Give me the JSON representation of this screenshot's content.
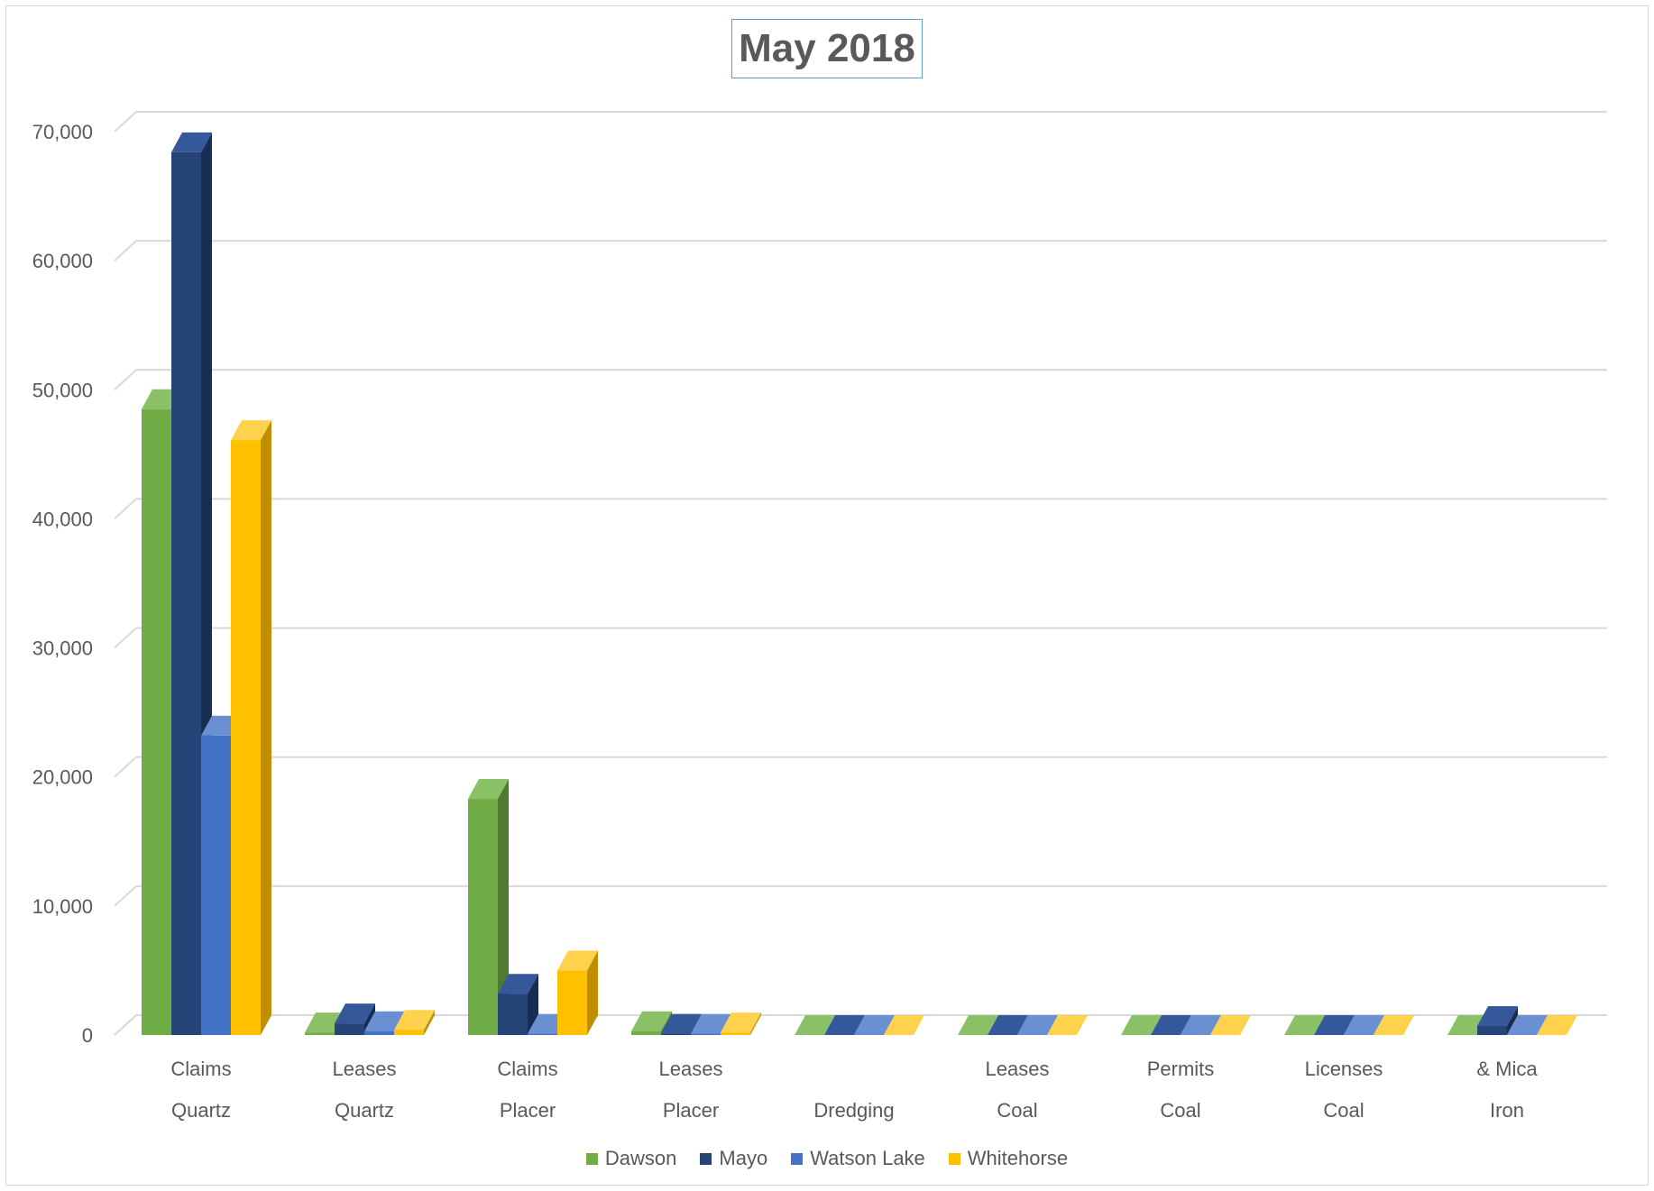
{
  "chart_data": {
    "type": "bar",
    "title": "May 2018",
    "xlabel": "",
    "ylabel": "",
    "ylim": [
      0,
      70000
    ],
    "yticks": [
      "0",
      "10,000",
      "20,000",
      "30,000",
      "40,000",
      "50,000",
      "60,000",
      "70,000"
    ],
    "grid": true,
    "legend_position": "bottom",
    "categories": [
      {
        "line1": "Claims",
        "line2": "Quartz"
      },
      {
        "line1": "Leases",
        "line2": "Quartz"
      },
      {
        "line1": "Claims",
        "line2": "Placer"
      },
      {
        "line1": "Leases",
        "line2": "Placer"
      },
      {
        "line1": "",
        "line2": "Dredging"
      },
      {
        "line1": "Leases",
        "line2": "Coal"
      },
      {
        "line1": "Permits",
        "line2": "Coal"
      },
      {
        "line1": "Licenses",
        "line2": "Coal"
      },
      {
        "line1": "& Mica",
        "line2": "Iron"
      }
    ],
    "series": [
      {
        "name": "Dawson",
        "color": "#70ad47",
        "side_color": "#4e7a31",
        "top_color": "#8bc166",
        "values": [
          48500,
          200,
          18300,
          300,
          0,
          0,
          0,
          0,
          0
        ]
      },
      {
        "name": "Mayo",
        "color": "#264478",
        "side_color": "#182d52",
        "top_color": "#34589a",
        "values": [
          68400,
          900,
          3200,
          100,
          0,
          0,
          0,
          0,
          700
        ]
      },
      {
        "name": "Watson Lake",
        "color": "#4472c4",
        "side_color": "#2f5597",
        "top_color": "#6a8fd3",
        "values": [
          23200,
          300,
          100,
          100,
          0,
          0,
          0,
          0,
          0
        ]
      },
      {
        "name": "Whitehorse",
        "color": "#ffc000",
        "side_color": "#bf8f00",
        "top_color": "#ffd24d",
        "values": [
          46100,
          400,
          5000,
          200,
          0,
          0,
          0,
          0,
          0
        ]
      }
    ]
  }
}
